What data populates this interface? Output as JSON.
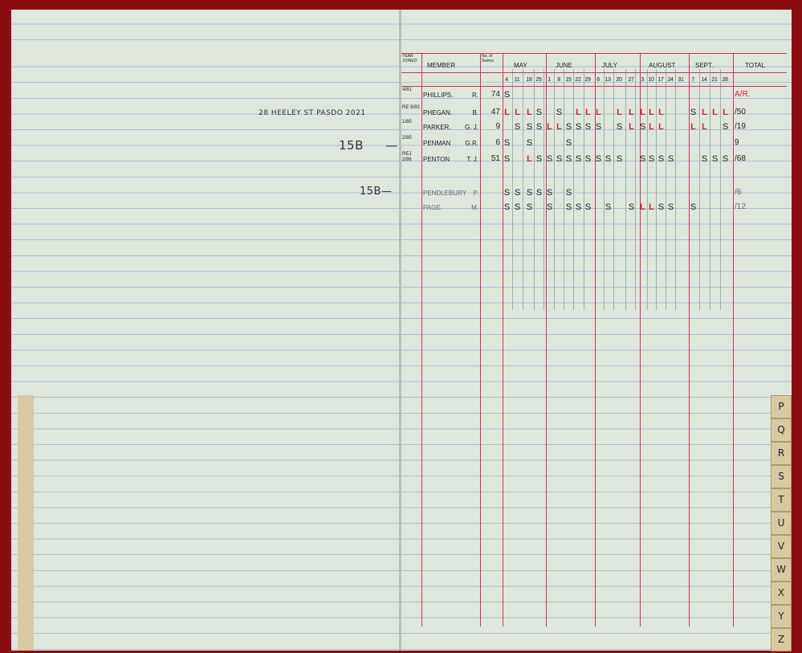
{
  "left_page": {
    "note_address": "28 HEELEY ST PASDO 2021",
    "note_15b_1": "15B",
    "note_15b_2": "15B—"
  },
  "header": {
    "year_joined": "YEAR JOINED",
    "member": "MEMBER",
    "no_of_swims": "No. of Swims",
    "months": [
      "MAY",
      "JUNE",
      "JULY",
      "AUGUST",
      "SEPT."
    ],
    "total": "TOTAL",
    "dates": [
      "4",
      "11",
      "18",
      "25",
      "1",
      "8",
      "15",
      "22",
      "29",
      "6",
      "13",
      "20",
      "27",
      "3",
      "10",
      "17",
      "24",
      "31",
      "7",
      "14",
      "21",
      "28"
    ]
  },
  "rows": [
    {
      "joined": "4/81",
      "member": "PHILLIPS.",
      "initials": "R.",
      "swims": "74",
      "marks": [
        "S",
        "",
        "",
        "",
        "",
        "",
        "",
        "",
        "",
        "",
        "",
        "",
        "",
        "",
        "",
        "",
        "",
        "",
        "",
        "",
        "",
        ""
      ],
      "total": "A/R.",
      "total_color": "#c8283c"
    },
    {
      "joined": "RE 9/83",
      "member": "PHEGAN.",
      "initials": "B.",
      "swims": "47",
      "marks": [
        "L",
        "L",
        "L",
        "S",
        "",
        "S",
        "",
        "L",
        "L",
        "L",
        "",
        "L",
        "L",
        "L",
        "L",
        "L",
        "",
        "",
        "S",
        "L",
        "L",
        "L"
      ],
      "total": "/50"
    },
    {
      "joined": "1/85",
      "member": "PARKER.",
      "initials": "G. J.",
      "swims": "9",
      "marks": [
        "",
        "S",
        "S",
        "S",
        "L",
        "L",
        "S",
        "S",
        "S",
        "S",
        "",
        "S",
        "L",
        "S",
        "L",
        "L",
        "",
        "",
        "L",
        "L",
        "",
        "S"
      ],
      "total": "/19"
    },
    {
      "joined": "2/85",
      "member": "PENMAN",
      "initials": "G.R.",
      "swims": "6",
      "marks": [
        "S",
        "",
        "S",
        "",
        "",
        "",
        "S",
        "",
        "",
        "",
        "",
        "",
        "",
        "",
        "",
        "",
        "",
        "",
        "",
        "",
        "",
        ""
      ],
      "total": "9"
    },
    {
      "joined": "REJ 2/86",
      "member": "PENTON",
      "initials": "T. J.",
      "swims": "51",
      "marks": [
        "S",
        "",
        "L",
        "S",
        "S",
        "S",
        "S",
        "S",
        "S",
        "S",
        "S",
        "S",
        "",
        "S",
        "S",
        "S",
        "S",
        "",
        "",
        "S",
        "S",
        "S"
      ],
      "total": "/68"
    },
    {
      "joined": "",
      "member": "PENDLEBURY",
      "initials": "P.",
      "swims": "",
      "marks": [
        "S",
        "S",
        "S",
        "S",
        "S",
        "",
        "S",
        "",
        "",
        "",
        "",
        "",
        "",
        "",
        "",
        "",
        "",
        "",
        "",
        "",
        "",
        ""
      ],
      "total": "/6",
      "pencil": true
    },
    {
      "joined": "",
      "member": "PAGE.",
      "initials": "M.",
      "swims": "",
      "marks": [
        "S",
        "S",
        "S",
        "",
        "S",
        "",
        "S",
        "S",
        "S",
        "",
        "S",
        "",
        "S",
        "L",
        "L",
        "S",
        "S",
        "",
        "S",
        "",
        "",
        ""
      ],
      "total": "/12",
      "pencil": true
    }
  ],
  "index_tabs": [
    "P",
    "Q",
    "R",
    "S",
    "T",
    "U",
    "V",
    "W",
    "X",
    "Y",
    "Z"
  ],
  "colors": {
    "rule_red": "#c23a55",
    "rule_blue": "#a9bfd6",
    "paper": "#dfe6dc",
    "cover": "#8a0d12",
    "late_mark": "#c8283c"
  }
}
